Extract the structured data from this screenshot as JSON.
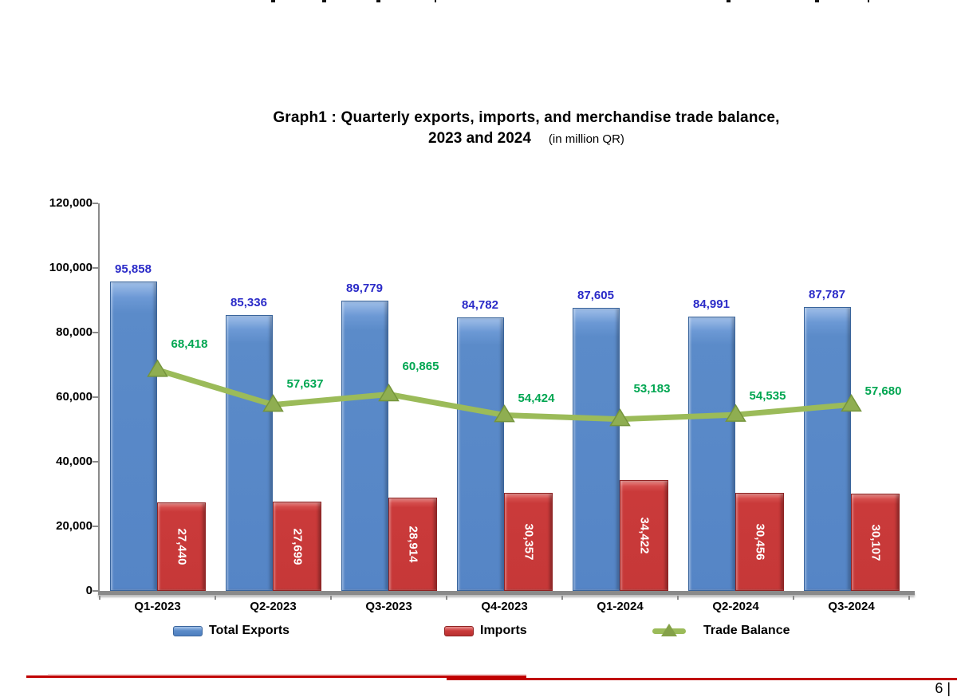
{
  "page": {
    "page_number": "6 |"
  },
  "title": {
    "line1": "Graph1 : Quarterly exports, imports, and merchandise trade balance,",
    "line2": "2023 and 2024",
    "unit_note": "(in million QR)"
  },
  "chart_data": {
    "type": "bar",
    "subtype": "grouped-bars-with-line-overlay",
    "title": "Graph1 : Quarterly exports, imports, and merchandise trade balance, 2023 and 2024",
    "unit": "in million QR",
    "categories": [
      "Q1-2023",
      "Q2-2023",
      "Q3-2023",
      "Q4-2023",
      "Q1-2024",
      "Q2-2024",
      "Q3-2024"
    ],
    "series": [
      {
        "name": "Total Exports",
        "type": "bar",
        "color": "#5B8BC9",
        "border_color": "#3A659C",
        "label_color": "#2B2BC8",
        "values": [
          95858,
          85336,
          89779,
          84782,
          87605,
          84991,
          87787
        ],
        "labels": [
          "95,858",
          "85,336",
          "89,779",
          "84,782",
          "87,605",
          "84,991",
          "87,787"
        ]
      },
      {
        "name": "Imports",
        "type": "bar",
        "color": "#CA3A3A",
        "border_color": "#8F2323",
        "label_color": "#FFFFFF",
        "values": [
          27440,
          27699,
          28914,
          30357,
          34422,
          30456,
          30107
        ],
        "labels": [
          "27,440",
          "27,699",
          "28,914",
          "30,357",
          "34,422",
          "30,456",
          "30,107"
        ]
      },
      {
        "name": "Trade Balance",
        "type": "line",
        "color": "#9BBB59",
        "marker": "triangle-up",
        "marker_color": "#8FAE51",
        "label_color": "#00A651",
        "values": [
          68418,
          57637,
          60865,
          54424,
          53183,
          54535,
          57680
        ],
        "labels": [
          "68,418",
          "57,637",
          "60,865",
          "54,424",
          "53,183",
          "54,535",
          "57,680"
        ]
      }
    ],
    "ylim": [
      0,
      120000
    ],
    "ytick_step": 20000,
    "ytick_labels": [
      "0",
      "20,000",
      "40,000",
      "60,000",
      "80,000",
      "100,000",
      "120,000"
    ],
    "grid": false,
    "legend_position": "bottom",
    "axis_color": "#8A8A8A",
    "footer_line_color": "#C00000"
  }
}
